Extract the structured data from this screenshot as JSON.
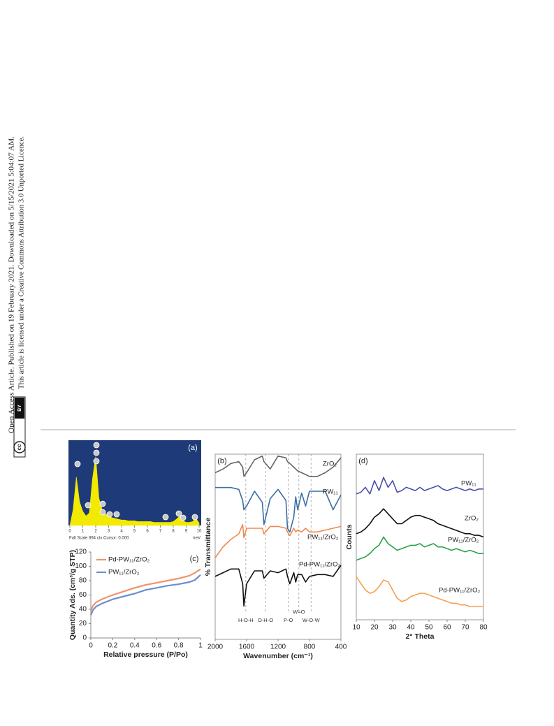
{
  "side_note": {
    "line1": "Open Access Article. Published on 19 February 2021. Downloaded on 5/15/2021 5:04:07 AM.",
    "line2": "This article is licensed under a Creative Commons Attribution 3.0 Unported Licence.",
    "badge_cc": "cc",
    "badge_by": "BY"
  },
  "chart_data": [
    {
      "type": "area",
      "panel_label": "(a)",
      "info": "Full Scale 894 cts Cursor: 0.000",
      "x_unit": "keV",
      "color": "#f2ea00",
      "x": [
        0,
        0.25,
        0.5,
        0.75,
        1,
        1.25,
        1.5,
        1.75,
        2,
        2.25,
        2.5,
        2.75,
        3,
        3.25,
        3.5,
        3.75,
        4,
        4.25,
        4.5,
        4.75,
        5,
        5.25,
        5.5,
        5.75,
        6,
        6.25,
        6.5,
        6.75,
        7,
        7.25,
        7.5,
        7.75,
        8,
        8.25,
        8.5,
        8.75,
        9,
        9.25,
        9.5,
        9.75,
        10
      ],
      "values": [
        0,
        20,
        62,
        30,
        18,
        12,
        16,
        60,
        88,
        35,
        20,
        15,
        12,
        10,
        9,
        8,
        7,
        7,
        6,
        6,
        6,
        5,
        5,
        5,
        5,
        5,
        4,
        4,
        4,
        4,
        4,
        4,
        5,
        8,
        12,
        6,
        4,
        4,
        5,
        9,
        3
      ],
      "xlim": [
        0,
        10
      ],
      "ylim": [
        0,
        100
      ],
      "xticks": [
        0,
        1,
        2,
        3,
        4,
        5,
        6,
        7,
        8,
        9,
        10
      ]
    },
    {
      "type": "line",
      "panel_label": "(c)",
      "x_label": "Relative pressure (P/Po)",
      "y_label": "Quantity Ads. (cm³/g STP)",
      "x": [
        0,
        0.02,
        0.05,
        0.1,
        0.2,
        0.3,
        0.4,
        0.5,
        0.6,
        0.7,
        0.8,
        0.9,
        0.95,
        1
      ],
      "series": [
        {
          "name": "Pd-PW₁₁/ZrO₂",
          "color": "#f0936a",
          "values": [
            38,
            45,
            50,
            54,
            60,
            65,
            70,
            74,
            77,
            80,
            83,
            87,
            91,
            96
          ]
        },
        {
          "name": "PW₁₁/ZrO₂",
          "color": "#6a8fd0",
          "values": [
            32,
            39,
            44,
            48,
            54,
            58,
            62,
            67,
            70,
            73,
            75,
            78,
            81,
            88
          ]
        }
      ],
      "xlim": [
        0,
        1
      ],
      "ylim": [
        0,
        120
      ],
      "xticks": [
        0,
        0.2,
        0.4,
        0.6,
        0.8,
        1
      ],
      "yticks": [
        0,
        20,
        40,
        60,
        80,
        100,
        120
      ]
    },
    {
      "type": "line",
      "panel_label": "(b)",
      "x_label": "Wavenumber (cm⁻¹)",
      "y_label": "% Transmittance",
      "x": [
        2000,
        1900,
        1800,
        1700,
        1650,
        1635,
        1600,
        1500,
        1400,
        1380,
        1300,
        1200,
        1100,
        1080,
        1050,
        1000,
        975,
        950,
        900,
        850,
        800,
        700,
        600,
        500,
        400
      ],
      "series": [
        {
          "name": "ZrO₂",
          "color": "#666666",
          "values": [
            90,
            92,
            95,
            96,
            93,
            88,
            90,
            97,
            99,
            96,
            92,
            99,
            98,
            96,
            95,
            93,
            92,
            91,
            90,
            89,
            88,
            88,
            90,
            93,
            98
          ]
        },
        {
          "name": "PW₁₁",
          "color": "#3a6ea5",
          "values": [
            82,
            82,
            82,
            81,
            75,
            70,
            72,
            80,
            74,
            62,
            76,
            81,
            75,
            60,
            58,
            66,
            77,
            70,
            79,
            72,
            80,
            80,
            80,
            70,
            78
          ]
        },
        {
          "name": "PW₁₁/ZrO₂",
          "color": "#f08a4b",
          "values": [
            44,
            50,
            54,
            57,
            62,
            55,
            60,
            60,
            60,
            57,
            61,
            61,
            60,
            58,
            56,
            60,
            58,
            59,
            58,
            60,
            58,
            58,
            59,
            60,
            61
          ]
        },
        {
          "name": "Pd-PW₁₁/ZrO₂",
          "color": "#111111",
          "values": [
            34,
            36,
            38,
            38,
            30,
            18,
            30,
            37,
            37,
            33,
            37,
            36,
            38,
            34,
            30,
            36,
            31,
            35,
            35,
            31,
            34,
            35,
            35,
            34,
            40
          ]
        }
      ],
      "annotations": [
        {
          "text": "H-O-H",
          "x": 1610
        },
        {
          "text": "O-H-O",
          "x": 1360
        },
        {
          "text": "P-O",
          "x": 1070
        },
        {
          "text": "W=O",
          "x": 935
        },
        {
          "text": "W-O-W",
          "x": 780
        }
      ],
      "xlim": [
        2000,
        400
      ],
      "ylim": [
        0,
        100
      ],
      "xticks": [
        2000,
        1600,
        1200,
        800,
        400
      ]
    },
    {
      "type": "line",
      "panel_label": "(d)",
      "x_label": "2° Theta",
      "y_label": "Counts",
      "x": [
        10,
        12.5,
        15,
        17.5,
        20,
        22.5,
        25,
        27.5,
        30,
        32.5,
        35,
        37.5,
        40,
        42.5,
        45,
        47.5,
        50,
        52.5,
        55,
        57.5,
        60,
        62.5,
        65,
        67.5,
        70,
        72.5,
        75,
        77.5,
        80
      ],
      "series": [
        {
          "name": "PW₁₁",
          "color": "#4b4fa8",
          "values": [
            76,
            77,
            80,
            76,
            84,
            78,
            86,
            80,
            84,
            77,
            78,
            80,
            79,
            78,
            80,
            78,
            79,
            80,
            81,
            79,
            78,
            79,
            80,
            79,
            78,
            79,
            78,
            79,
            79
          ]
        },
        {
          "name": "ZrO₂",
          "color": "#111111",
          "values": [
            52,
            53,
            55,
            58,
            62,
            64,
            67,
            64,
            61,
            58,
            58,
            60,
            62,
            63,
            63,
            62,
            61,
            60,
            58,
            57,
            56,
            55,
            54,
            53,
            52,
            52,
            51,
            51,
            50
          ]
        },
        {
          "name": "PW₁₁/ZrO₂",
          "color": "#2ca04c",
          "values": [
            36,
            37,
            38,
            40,
            43,
            45,
            50,
            46,
            44,
            42,
            43,
            44,
            45,
            45,
            46,
            44,
            45,
            46,
            44,
            44,
            43,
            42,
            43,
            42,
            41,
            42,
            41,
            40,
            40
          ]
        },
        {
          "name": "Pd-PW₁₁/ZrO₂",
          "color": "#f5a050",
          "values": [
            26,
            22,
            18,
            16,
            17,
            20,
            24,
            23,
            18,
            13,
            11,
            12,
            14,
            15,
            16,
            16,
            15,
            14,
            13,
            12,
            11,
            10,
            10,
            9,
            9,
            8,
            8,
            8,
            8
          ]
        }
      ],
      "xlim": [
        10,
        80
      ],
      "ylim": [
        0,
        100
      ],
      "xticks": [
        10,
        20,
        30,
        40,
        50,
        60,
        70,
        80
      ]
    }
  ]
}
